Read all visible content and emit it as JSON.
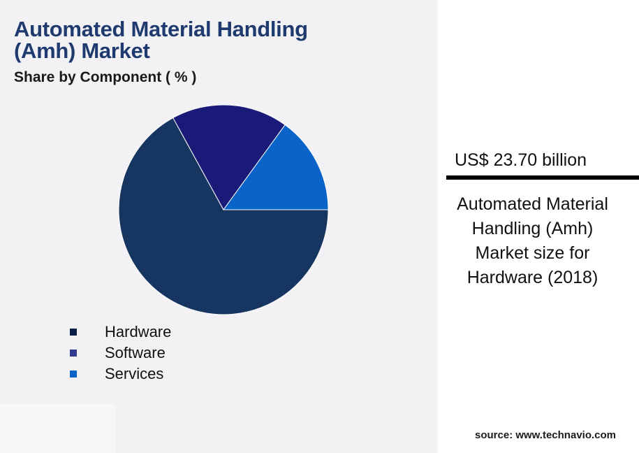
{
  "header": {
    "title": "Automated Material Handling (Amh) Market",
    "subtitle": "Share by Component ( % )"
  },
  "chart_data": {
    "type": "pie",
    "categories": [
      "Hardware",
      "Software",
      "Services"
    ],
    "values": [
      67,
      18,
      15
    ],
    "colors": [
      "#163560",
      "#1a1a78",
      "#0a63c9"
    ],
    "legend_colors": [
      "#0b1f44",
      "#323a8c",
      "#0a63c9"
    ],
    "legend_position": "bottom-left"
  },
  "highlight": {
    "value": "US$ 23.70 billion",
    "description": "Automated Material Handling (Amh) Market size for Hardware (2018)"
  },
  "footer": {
    "source": "source: www.technavio.com"
  }
}
